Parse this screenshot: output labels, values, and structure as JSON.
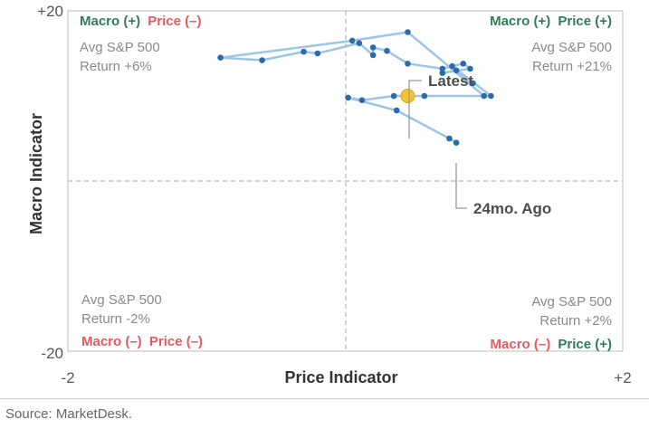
{
  "chart_data": {
    "type": "scatter",
    "xlabel": "Price Indicator",
    "ylabel": "Macro Indicator",
    "xlim": [
      -2,
      2
    ],
    "ylim": [
      -20,
      20
    ],
    "x_tick_labels": [
      "-2",
      "+2"
    ],
    "y_tick_labels": [
      "+20",
      "-20"
    ],
    "grid": false,
    "reference_lines": {
      "x": 0,
      "y": 0
    },
    "series": [
      {
        "x": [
          1.0,
          0.45,
          0.05,
          -0.9,
          -0.6,
          -0.3,
          -0.2,
          0.1,
          0.2,
          0.2,
          0.3,
          0.45,
          0.7,
          0.85,
          0.9,
          0.7,
          0.8,
          0.92,
          0.77,
          1.05,
          0.57,
          0.35,
          0.12,
          0.02,
          0.37,
          0.75,
          0.8
        ],
        "y": [
          10.0,
          17.5,
          16.5,
          14.5,
          14.2,
          15.2,
          15.0,
          16.2,
          14.8,
          15.7,
          15.3,
          13.8,
          13.2,
          13.8,
          13.2,
          12.7,
          13.0,
          11.5,
          13.5,
          10.0,
          10.0,
          10.0,
          9.5,
          9.8,
          8.3,
          5.0,
          4.5
        ]
      }
    ],
    "latest": {
      "x": 0.45,
      "y": 10.0
    },
    "point_color": "#2a6bb0",
    "line_color": "#9cc6e6",
    "latest_color": "#f4c430",
    "quadrants": {
      "top_left": {
        "macro": "Macro (+)",
        "price": "Price (–)",
        "avg": "Avg S&P 500",
        "ret": "Return +6%"
      },
      "top_right": {
        "macro": "Macro (+)",
        "price": "Price (+)",
        "avg": "Avg S&P 500",
        "ret": "Return +21%"
      },
      "bottom_left": {
        "macro": "Macro (–)",
        "price": "Price (–)",
        "avg": "Avg S&P 500",
        "ret": "Return -2%"
      },
      "bottom_right": {
        "macro": "Macro (–)",
        "price": "Price (+)",
        "avg": "Avg S&P 500",
        "ret": "Return +2%"
      }
    },
    "annotations": {
      "latest": "Latest",
      "ago": "24mo. Ago"
    },
    "colors": {
      "positive": "#2e7d57",
      "negative": "#e8585f"
    }
  },
  "source": "Source: MarketDesk."
}
